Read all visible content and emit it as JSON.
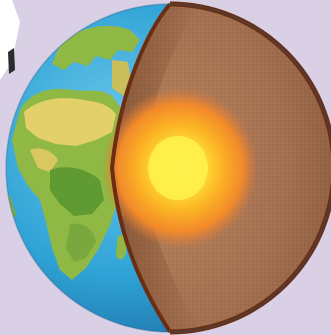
{
  "figure": {
    "kind": "earth-cutaway-illustration",
    "layers": [
      {
        "name": "crust",
        "color": "#6b2e12"
      },
      {
        "name": "mantle",
        "color": "#a07252"
      },
      {
        "name": "outer-core",
        "color": "#f7931e"
      },
      {
        "name": "inner-core",
        "color": "#fff14a"
      }
    ],
    "surface": {
      "ocean_color": "#2fa3d6",
      "land_color": "#8fb944",
      "desert_color": "#e3d06a"
    },
    "background_color": "#d9d0e6"
  }
}
